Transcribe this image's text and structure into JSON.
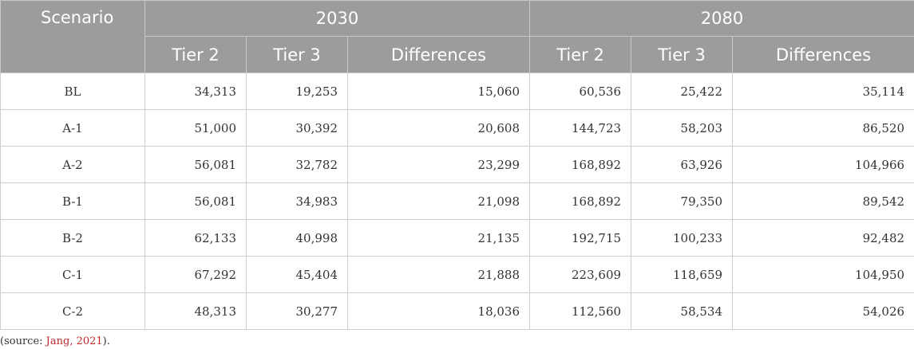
{
  "table": {
    "header": {
      "scenario": "Scenario",
      "groups": [
        "2030",
        "2080"
      ],
      "sub": [
        "Tier 2",
        "Tier 3",
        "Differences",
        "Tier 2",
        "Tier 3",
        "Differences"
      ]
    },
    "rows": [
      [
        "BL",
        "34,313",
        "19,253",
        "15,060",
        "60,536",
        "25,422",
        "35,114"
      ],
      [
        "A-1",
        "51,000",
        "30,392",
        "20,608",
        "144,723",
        "58,203",
        "86,520"
      ],
      [
        "A-2",
        "56,081",
        "32,782",
        "23,299",
        "168,892",
        "63,926",
        "104,966"
      ],
      [
        "B-1",
        "56,081",
        "34,983",
        "21,098",
        "168,892",
        "79,350",
        "89,542"
      ],
      [
        "B-2",
        "62,133",
        "40,998",
        "21,135",
        "192,715",
        "100,233",
        "92,482"
      ],
      [
        "C-1",
        "67,292",
        "45,404",
        "21,888",
        "223,609",
        "118,659",
        "104,950"
      ],
      [
        "C-2",
        "48,313",
        "30,277",
        "18,036",
        "112,560",
        "58,534",
        "54,026"
      ]
    ]
  },
  "source": {
    "prefix": "(source: ",
    "ref": "Jang, 2021",
    "suffix": ")."
  }
}
